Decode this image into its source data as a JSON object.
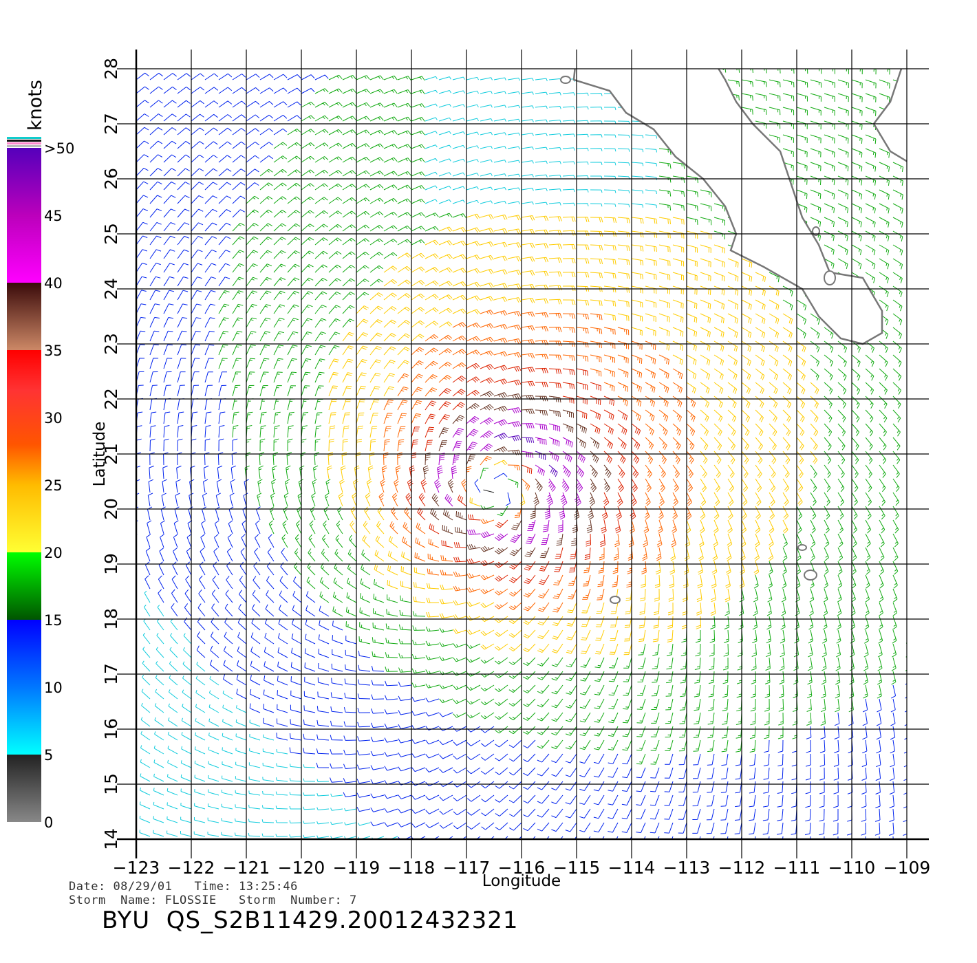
{
  "map": {
    "x_axis_label": "Longitude",
    "y_axis_label": "Latitude",
    "lon_ticks": [
      -123,
      -122,
      -121,
      -120,
      -119,
      -118,
      -117,
      -116,
      -115,
      -114,
      -113,
      -112,
      -111,
      -110,
      -109
    ],
    "lat_ticks": [
      14,
      15,
      16,
      17,
      18,
      19,
      20,
      21,
      22,
      23,
      24,
      25,
      26,
      27,
      28
    ],
    "lon_range": [
      -123,
      -108.6
    ],
    "lat_range": [
      14,
      28
    ],
    "storm_center": {
      "lon": -116.4,
      "lat": 20.4
    },
    "coastline_color": "#777777",
    "grid_color": "#000000"
  },
  "legend": {
    "unit_label": "knots",
    "tick_labels": [
      "0",
      "5",
      "10",
      "15",
      "20",
      "25",
      "30",
      "35",
      "40",
      "45",
      ">50"
    ],
    "tick_values": [
      0,
      5,
      10,
      15,
      20,
      25,
      30,
      35,
      40,
      45,
      50
    ],
    "color_stops": [
      {
        "value": 0,
        "color": "#888888"
      },
      {
        "value": 5,
        "color": "#222222"
      },
      {
        "value": 5.01,
        "color": "#00ffff"
      },
      {
        "value": 10,
        "color": "#0077ff"
      },
      {
        "value": 15,
        "color": "#0000ff"
      },
      {
        "value": 15.01,
        "color": "#005500"
      },
      {
        "value": 20,
        "color": "#00ff00"
      },
      {
        "value": 20.01,
        "color": "#ffff33"
      },
      {
        "value": 25,
        "color": "#ffbb00"
      },
      {
        "value": 28,
        "color": "#ff5500"
      },
      {
        "value": 32,
        "color": "#ff3333"
      },
      {
        "value": 35,
        "color": "#ff0000"
      },
      {
        "value": 35.01,
        "color": "#cc8866"
      },
      {
        "value": 40,
        "color": "#3a0a0a"
      },
      {
        "value": 40.01,
        "color": "#ff00ff"
      },
      {
        "value": 45,
        "color": "#bb00bb"
      },
      {
        "value": 50,
        "color": "#5500bb"
      }
    ],
    "cap_colors": [
      "#11cccc",
      "#111111",
      "#ff88cc",
      "#bbbbbb"
    ]
  },
  "info": {
    "date_label": "Date:",
    "date_value": "08/29/01",
    "time_label": "Time:",
    "time_value": "13:25:46",
    "storm_name_label": "Storm  Name:",
    "storm_name_value": "FLOSSIE",
    "storm_number_label": "Storm  Number:",
    "storm_number_value": "7",
    "product_id": "BYU  QS_S2B11429.20012432321"
  }
}
